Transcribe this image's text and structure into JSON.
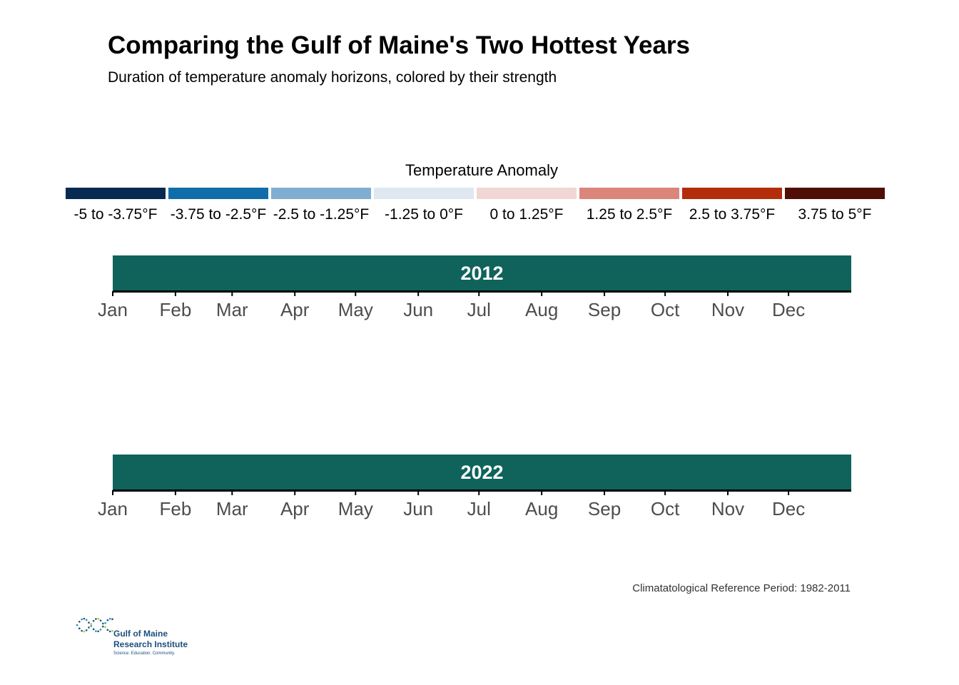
{
  "title": "Comparing the Gulf of Maine's Two Hottest Years",
  "subtitle": "Duration of temperature anomaly horizons, colored by their strength",
  "legend": {
    "title": "Temperature Anomaly",
    "items": [
      {
        "label": "-5 to -3.75°F",
        "color": "#062a52"
      },
      {
        "label": "-3.75 to -2.5°F",
        "color": "#0f6eaa"
      },
      {
        "label": "-2.5 to -1.25°F",
        "color": "#80aed2"
      },
      {
        "label": "-1.25 to 0°F",
        "color": "#dfe8f1"
      },
      {
        "label": "0 to 1.25°F",
        "color": "#f0d7d6"
      },
      {
        "label": "1.25 to 2.5°F",
        "color": "#dc857b"
      },
      {
        "label": "2.5 to 3.75°F",
        "color": "#b42d0a"
      },
      {
        "label": "3.75 to 5°F",
        "color": "#4f0f06"
      }
    ]
  },
  "panels": [
    {
      "year": "2012"
    },
    {
      "year": "2022"
    }
  ],
  "months": [
    "Jan",
    "Feb",
    "Mar",
    "Apr",
    "May",
    "Jun",
    "Jul",
    "Aug",
    "Sep",
    "Oct",
    "Nov",
    "Dec"
  ],
  "chart_data": [
    {
      "type": "area",
      "facet": "2012",
      "x_axis_ticks": [
        "Jan",
        "Feb",
        "Mar",
        "Apr",
        "May",
        "Jun",
        "Jul",
        "Aug",
        "Sep",
        "Oct",
        "Nov",
        "Dec"
      ],
      "series": []
    },
    {
      "type": "area",
      "facet": "2022",
      "x_axis_ticks": [
        "Jan",
        "Feb",
        "Mar",
        "Apr",
        "May",
        "Jun",
        "Jul",
        "Aug",
        "Sep",
        "Oct",
        "Nov",
        "Dec"
      ],
      "series": []
    }
  ],
  "caption": "Climatatological Reference Period: 1982-2011",
  "logo": {
    "line1": "Gulf of Maine",
    "line2": "Research Institute",
    "tagline": "Science. Education. Community.",
    "colors": {
      "blue": "#1c4f7c",
      "green": "#a4c639",
      "teal": "#2a8fbf"
    }
  },
  "colors": {
    "strip": "#0f635b",
    "strip_text": "#ffffff",
    "axis_text": "#4d4d4d"
  }
}
